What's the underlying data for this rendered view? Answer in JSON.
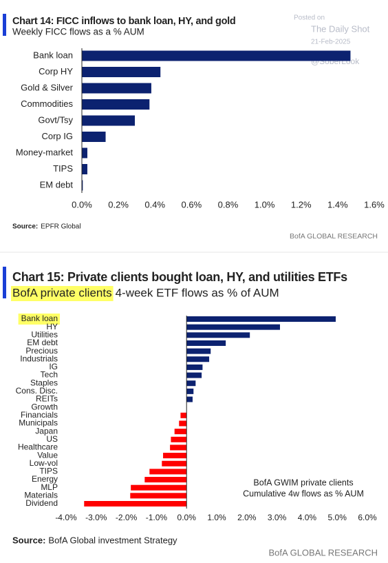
{
  "watermark": {
    "posted": "Posted on",
    "site": "The Daily Shot",
    "date": "21-Feb-2025",
    "handle": "@SoberLook"
  },
  "chart_data": [
    {
      "type": "bar",
      "orientation": "horizontal",
      "title": "Chart 14: FICC inflows to bank loan, HY, and gold",
      "subtitle": "Weekly FICC flows as a % AUM",
      "categories": [
        "Bank loan",
        "Corp HY",
        "Gold & Silver",
        "Commodities",
        "Govt/Tsy",
        "Corp IG",
        "Money-market",
        "TIPS",
        "EM debt"
      ],
      "values": [
        1.47,
        0.43,
        0.38,
        0.37,
        0.29,
        0.13,
        0.03,
        0.03,
        0.005
      ],
      "color": "#0c2270",
      "xlim": [
        0,
        1.6
      ],
      "xticks": [
        {
          "value": 0,
          "label": "0.0%"
        },
        {
          "value": 0.2,
          "label": "0.2%"
        },
        {
          "value": 0.4,
          "label": "0.4%"
        },
        {
          "value": 0.6,
          "label": "0.6%"
        },
        {
          "value": 0.8,
          "label": "0.8%"
        },
        {
          "value": 1.0,
          "label": "1.0%"
        },
        {
          "value": 1.2,
          "label": "1.2%"
        },
        {
          "value": 1.4,
          "label": "1.4%"
        },
        {
          "value": 1.6,
          "label": "1.6%"
        }
      ],
      "source_label": "Source:",
      "source": "EPFR Global",
      "footer": "BofA GLOBAL RESEARCH"
    },
    {
      "type": "bar",
      "orientation": "horizontal",
      "title": "Chart 15: Private clients bought loan, HY, and utilities ETFs",
      "subtitle_highlight": "BofA private clients",
      "subtitle": "4-week ETF flows as % of AUM",
      "categories": [
        "Bank loan",
        "HY",
        "Utilities",
        "EM debt",
        "Precious",
        "Industrials",
        "IG",
        "Tech",
        "Staples",
        "Cons. Disc.",
        "REITs",
        "Growth",
        "Financials",
        "Municipals",
        "Japan",
        "US",
        "Healthcare",
        "Value",
        "Low-vol",
        "TIPS",
        "Energy",
        "MLP",
        "Materials",
        "Dividend"
      ],
      "values": [
        4.95,
        3.1,
        2.1,
        1.3,
        0.8,
        0.75,
        0.53,
        0.5,
        0.3,
        0.23,
        0.2,
        0,
        -0.2,
        -0.25,
        -0.4,
        -0.52,
        -0.55,
        -0.78,
        -0.82,
        -1.23,
        -1.39,
        -1.85,
        -1.87,
        -3.4
      ],
      "color": "#0c2270",
      "negative_color": "#ff0000",
      "xlim": [
        -4,
        6
      ],
      "xticks": [
        {
          "value": -4,
          "label": "-4.0%"
        },
        {
          "value": -3,
          "label": "-3.0%"
        },
        {
          "value": -2,
          "label": "-2.0%"
        },
        {
          "value": -1,
          "label": "-1.0%"
        },
        {
          "value": 0,
          "label": "0.0%"
        },
        {
          "value": 1,
          "label": "1.0%"
        },
        {
          "value": 2,
          "label": "2.0%"
        },
        {
          "value": 3,
          "label": "3.0%"
        },
        {
          "value": 4,
          "label": "4.0%"
        },
        {
          "value": 5,
          "label": "5.0%"
        },
        {
          "value": 6,
          "label": "6.0%"
        }
      ],
      "annotation": [
        "BofA GWIM private clients",
        "Cumulative 4w flows as % AUM"
      ],
      "source_label": "Source:",
      "source": "BofA Global investment Strategy",
      "footer": "BofA GLOBAL RESEARCH"
    }
  ]
}
